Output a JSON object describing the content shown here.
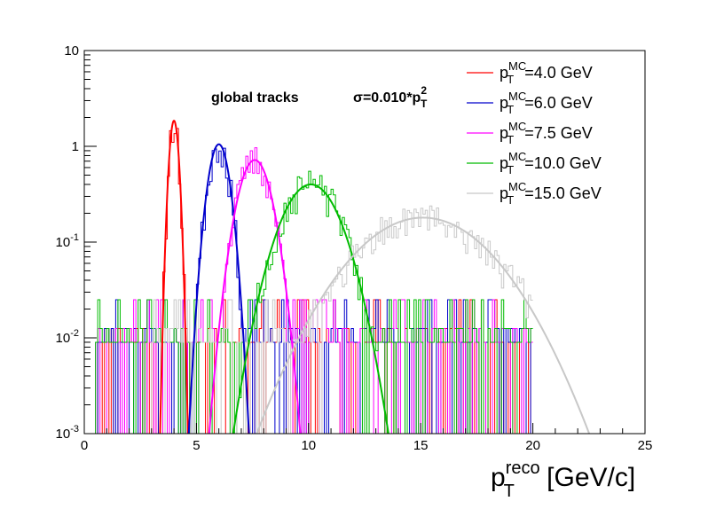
{
  "chart_data": {
    "type": "line",
    "xlabel": {
      "base": "p",
      "sup": "reco",
      "sub": "T",
      "rest": " [GeV/c]"
    },
    "ylabel": "",
    "xlim": [
      0,
      25
    ],
    "ylim": [
      0.001,
      10
    ],
    "yscale": "log",
    "x_ticks": [
      0,
      5,
      10,
      15,
      20,
      25
    ],
    "x_tick_labels": [
      "0",
      "5",
      "10",
      "15",
      "20",
      "25"
    ],
    "y_ticks": [
      0.001,
      0.01,
      0.1,
      1,
      10
    ],
    "y_tick_labels": [
      {
        "base": "10",
        "exp": "-3"
      },
      {
        "base": "10",
        "exp": "-2"
      },
      {
        "base": "10",
        "exp": "-1"
      },
      {
        "base": "1",
        "exp": ""
      },
      {
        "base": "10",
        "exp": ""
      }
    ],
    "annotations": [
      {
        "text": "global tracks"
      },
      {
        "prefix": "σ=0.010*p",
        "sup": "2",
        "sub": "T"
      }
    ],
    "legend_position": "top-right",
    "series": [
      {
        "name": "p_T^MC=4.0 GeV",
        "label_sup": "MC",
        "label_sub": "T",
        "label_value": "=4.0 GeV",
        "color": "#ff0000",
        "mean": 4.0,
        "peak": 1.85,
        "sigma": 0.16,
        "seed": 11,
        "range": [
          0.5,
          20
        ]
      },
      {
        "name": "p_T^MC=6.0 GeV",
        "label_sup": "MC",
        "label_sub": "T",
        "label_value": "=6.0 GeV",
        "color": "#0000cc",
        "mean": 6.0,
        "peak": 1.05,
        "sigma": 0.36,
        "seed": 23,
        "range": [
          0.5,
          20
        ]
      },
      {
        "name": "p_T^MC=7.5 GeV",
        "label_sup": "MC",
        "label_sub": "T",
        "label_value": "=7.5 GeV",
        "color": "#ff00ff",
        "mean": 7.6,
        "peak": 0.72,
        "sigma": 0.56,
        "seed": 37,
        "range": [
          0.5,
          20
        ]
      },
      {
        "name": "p_T^MC=10.0 GeV",
        "label_sup": "MC",
        "label_sub": "T",
        "label_value": "=10.0 GeV",
        "color": "#00bb00",
        "mean": 10.1,
        "peak": 0.4,
        "sigma": 1.0,
        "seed": 51,
        "range": [
          0.5,
          20
        ]
      },
      {
        "name": "p_T^MC=15.0 GeV",
        "label_sup": "MC",
        "label_sub": "T",
        "label_value": "=15.0 GeV",
        "color": "#c8c8c8",
        "mean": 15.1,
        "peak": 0.18,
        "sigma": 2.3,
        "seed": 73,
        "range": [
          3,
          20
        ]
      }
    ]
  }
}
